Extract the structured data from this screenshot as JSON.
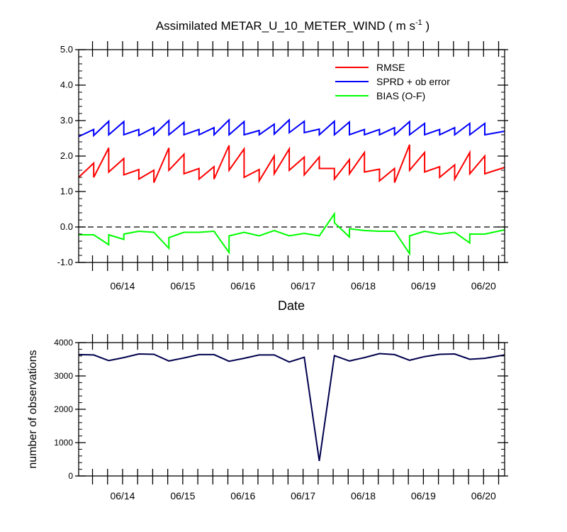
{
  "figure": {
    "title_main": "Assimilated METAR_U_10_METER_WIND ( m s",
    "title_sup": "-1",
    "title_end": " )"
  },
  "chart_data": [
    {
      "type": "line",
      "title": "Assimilated METAR_U_10_METER_WIND ( m s-1 )",
      "xlabel": "Date",
      "ylabel": "",
      "xlim": [
        13.27,
        20.35
      ],
      "ylim": [
        -1.0,
        5.0
      ],
      "yticks": [
        -1.0,
        0.0,
        1.0,
        2.0,
        3.0,
        4.0,
        5.0
      ],
      "ytick_labels": [
        "-1.0",
        "0.0",
        "1.0",
        "2.0",
        "3.0",
        "4.0",
        "5.0"
      ],
      "xticks": [
        14,
        15,
        16,
        17,
        18,
        19,
        20
      ],
      "xtick_labels": [
        "06/14",
        "06/15",
        "06/16",
        "06/17",
        "06/18",
        "06/19",
        "06/20"
      ],
      "reference_line": 0.0,
      "legend": {
        "placement": "top-right",
        "entries": [
          "RMSE",
          "SPRD + ob error",
          "BIAS (O-F)"
        ]
      },
      "series": [
        {
          "name": "RMSE",
          "color": "#ff0000",
          "x": [
            13.27,
            13.52,
            13.52,
            13.77,
            13.77,
            14.02,
            14.02,
            14.27,
            14.27,
            14.52,
            14.52,
            14.77,
            14.77,
            15.02,
            15.02,
            15.27,
            15.27,
            15.52,
            15.52,
            15.77,
            15.77,
            16.02,
            16.02,
            16.27,
            16.27,
            16.52,
            16.52,
            16.77,
            16.77,
            17.02,
            17.02,
            17.27,
            17.27,
            17.52,
            17.52,
            17.77,
            17.77,
            18.02,
            18.02,
            18.27,
            18.27,
            18.52,
            18.52,
            18.77,
            18.77,
            19.02,
            19.02,
            19.27,
            19.27,
            19.52,
            19.52,
            19.77,
            19.77,
            20.02,
            20.02,
            20.35
          ],
          "y": [
            1.4,
            1.8,
            1.4,
            2.23,
            1.55,
            1.93,
            1.47,
            1.62,
            1.35,
            1.6,
            1.25,
            2.23,
            1.6,
            2.05,
            1.5,
            1.65,
            1.35,
            1.7,
            1.35,
            2.3,
            1.6,
            2.2,
            1.4,
            1.62,
            1.3,
            2.0,
            1.5,
            2.2,
            1.6,
            1.97,
            1.47,
            1.97,
            1.65,
            1.65,
            1.35,
            1.9,
            1.5,
            2.1,
            1.55,
            1.63,
            1.3,
            1.65,
            1.25,
            2.32,
            1.6,
            2.1,
            1.55,
            1.7,
            1.4,
            1.75,
            1.35,
            2.1,
            1.5,
            2.0,
            1.5,
            1.68
          ]
        },
        {
          "name": "SPRD + ob error",
          "color": "#0000ff",
          "x": [
            13.27,
            13.52,
            13.52,
            13.77,
            13.77,
            14.02,
            14.02,
            14.27,
            14.27,
            14.52,
            14.52,
            14.77,
            14.77,
            15.02,
            15.02,
            15.27,
            15.27,
            15.52,
            15.52,
            15.77,
            15.77,
            16.02,
            16.02,
            16.27,
            16.27,
            16.52,
            16.52,
            16.77,
            16.77,
            17.02,
            17.02,
            17.27,
            17.27,
            17.52,
            17.52,
            17.77,
            17.77,
            18.02,
            18.02,
            18.27,
            18.27,
            18.52,
            18.52,
            18.77,
            18.77,
            19.02,
            19.02,
            19.27,
            19.27,
            19.52,
            19.52,
            19.77,
            19.77,
            20.02,
            20.02,
            20.35
          ],
          "y": [
            2.55,
            2.75,
            2.58,
            2.98,
            2.6,
            2.97,
            2.6,
            2.75,
            2.58,
            2.8,
            2.6,
            3.0,
            2.6,
            2.95,
            2.6,
            2.75,
            2.6,
            2.8,
            2.6,
            3.02,
            2.6,
            2.97,
            2.6,
            2.72,
            2.6,
            2.9,
            2.62,
            3.02,
            2.66,
            2.98,
            2.66,
            2.76,
            2.6,
            2.98,
            2.6,
            2.96,
            2.6,
            2.75,
            2.6,
            2.75,
            2.6,
            2.8,
            2.6,
            2.97,
            2.6,
            2.92,
            2.6,
            2.75,
            2.6,
            2.8,
            2.6,
            2.92,
            2.6,
            2.92,
            2.6,
            2.7
          ]
        },
        {
          "name": "BIAS (O-F)",
          "color": "#00ff00",
          "x": [
            13.27,
            13.52,
            13.77,
            13.77,
            14.02,
            14.02,
            14.27,
            14.52,
            14.77,
            14.77,
            15.02,
            15.27,
            15.52,
            15.77,
            15.77,
            16.02,
            16.27,
            16.52,
            16.77,
            17.02,
            17.27,
            17.52,
            17.52,
            17.77,
            17.77,
            18.02,
            18.27,
            18.52,
            18.77,
            18.77,
            19.02,
            19.27,
            19.52,
            19.77,
            19.77,
            20.02,
            20.35
          ],
          "y": [
            -0.22,
            -0.22,
            -0.5,
            -0.22,
            -0.35,
            -0.2,
            -0.12,
            -0.15,
            -0.6,
            -0.3,
            -0.15,
            -0.15,
            -0.12,
            -0.72,
            -0.25,
            -0.15,
            -0.25,
            -0.1,
            -0.25,
            -0.18,
            -0.25,
            0.37,
            0.12,
            -0.28,
            -0.05,
            -0.1,
            -0.12,
            -0.12,
            -0.75,
            -0.25,
            -0.12,
            -0.2,
            -0.15,
            -0.45,
            -0.2,
            -0.2,
            -0.08
          ]
        }
      ]
    },
    {
      "type": "line",
      "title": "",
      "xlabel": "",
      "ylabel": "number of observations",
      "xlim": [
        13.27,
        20.35
      ],
      "ylim": [
        0,
        4000
      ],
      "yticks": [
        0,
        1000,
        2000,
        3000,
        4000
      ],
      "ytick_labels": [
        "0",
        "1000",
        "2000",
        "3000",
        "4000"
      ],
      "xticks": [
        14,
        15,
        16,
        17,
        18,
        19,
        20
      ],
      "xtick_labels": [
        "06/14",
        "06/15",
        "06/16",
        "06/17",
        "06/18",
        "06/19",
        "06/20"
      ],
      "series": [
        {
          "name": "number of observations",
          "color": "#00004d",
          "x": [
            13.27,
            13.52,
            13.77,
            14.02,
            14.27,
            14.52,
            14.77,
            15.02,
            15.27,
            15.52,
            15.77,
            16.02,
            16.27,
            16.52,
            16.77,
            17.02,
            17.27,
            17.52,
            17.77,
            18.02,
            18.27,
            18.52,
            18.77,
            19.02,
            19.27,
            19.52,
            19.77,
            20.02,
            20.35
          ],
          "y": [
            3640,
            3630,
            3460,
            3550,
            3660,
            3650,
            3450,
            3540,
            3640,
            3640,
            3440,
            3530,
            3630,
            3630,
            3420,
            3560,
            450,
            3610,
            3450,
            3550,
            3670,
            3640,
            3470,
            3580,
            3650,
            3660,
            3500,
            3530,
            3630
          ]
        }
      ]
    }
  ]
}
